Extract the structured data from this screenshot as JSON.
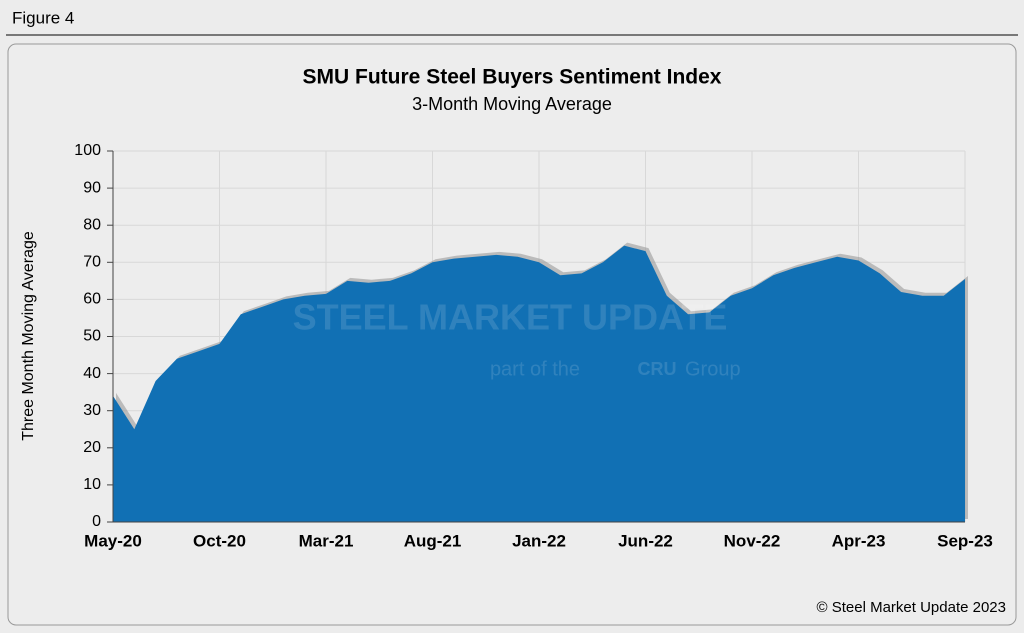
{
  "figure_label": "Figure 4",
  "copyright": "© Steel Market Update 2023",
  "watermark": {
    "brand": "STEEL MARKET UPDATE",
    "tagline_start": "part of the",
    "logo": "CRU",
    "tagline_end": "Group"
  },
  "chart_data": {
    "type": "area",
    "title": "SMU Future Steel Buyers Sentiment Index",
    "subtitle": "3-Month Moving Average",
    "y_label": "Three Month Moving Average",
    "categories": [
      "May-20",
      null,
      null,
      null,
      null,
      "Oct-20",
      null,
      null,
      null,
      null,
      "Mar-21",
      null,
      null,
      null,
      null,
      "Aug-21",
      null,
      null,
      null,
      null,
      "Jan-22",
      null,
      null,
      null,
      null,
      "Jun-22",
      null,
      null,
      null,
      null,
      "Nov-22",
      null,
      null,
      null,
      null,
      "Apr-23",
      null,
      null,
      null,
      null,
      "Sep-23"
    ],
    "values": [
      34,
      25,
      38,
      44,
      46,
      48,
      56,
      58,
      60,
      61,
      61.5,
      65,
      64.5,
      65,
      67,
      70,
      71,
      71.5,
      72,
      71.5,
      70,
      66.5,
      67,
      70,
      74.5,
      73,
      61,
      56,
      56.5,
      61,
      63,
      66.5,
      68.5,
      70,
      71.5,
      70.5,
      67,
      62,
      61,
      61,
      65.5
    ],
    "color": "#1170b4",
    "ylim": [
      0,
      100
    ],
    "yticks": [
      0,
      10,
      20,
      30,
      40,
      50,
      60,
      70,
      80,
      90,
      100
    ],
    "grid": true
  }
}
